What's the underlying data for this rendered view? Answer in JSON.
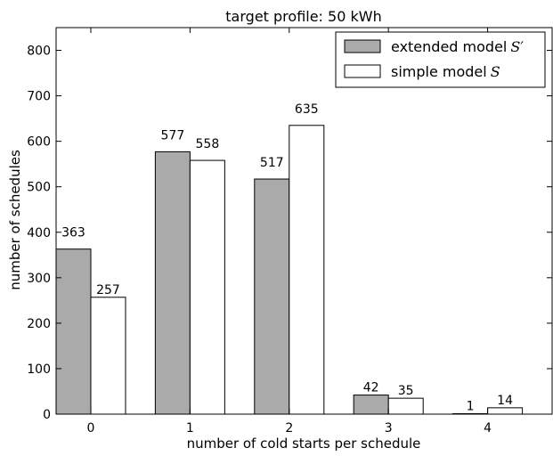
{
  "chart_data": {
    "type": "bar",
    "title": "target profile: 50 kWh",
    "xlabel": "number of cold starts per schedule",
    "ylabel": "number of schedules",
    "categories": [
      "0",
      "1",
      "2",
      "3",
      "4"
    ],
    "ylim": [
      0,
      850
    ],
    "yticks": [
      0,
      100,
      200,
      300,
      400,
      500,
      600,
      700,
      800
    ],
    "grid": false,
    "legend_position": "top-right",
    "series": [
      {
        "name": "extended model S′",
        "legend_text": "extended model",
        "legend_symbol": "S′",
        "color": "#aaaaaa",
        "values": [
          363,
          577,
          517,
          42,
          1
        ]
      },
      {
        "name": "simple model S",
        "legend_text": "simple model",
        "legend_symbol": "S",
        "color": "#ffffff",
        "values": [
          257,
          558,
          635,
          35,
          14
        ]
      }
    ]
  }
}
